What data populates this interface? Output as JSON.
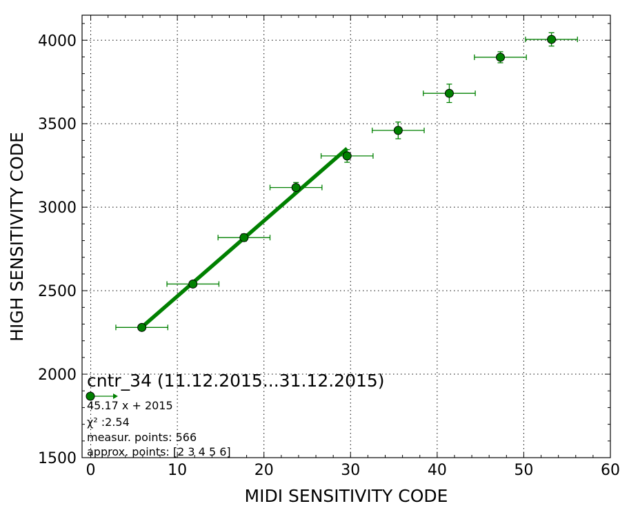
{
  "chart_data": {
    "type": "scatter",
    "title": "",
    "xlabel": "MIDI SENSITIVITY CODE",
    "ylabel": "HIGH SENSITIVITY CODE",
    "xlim": [
      -1,
      60
    ],
    "ylim": [
      1500,
      4150
    ],
    "x_ticks": [
      0,
      10,
      20,
      30,
      40,
      50,
      60
    ],
    "y_ticks": [
      1500,
      2000,
      2500,
      3000,
      3500,
      4000
    ],
    "grid": true,
    "colors": {
      "series": "#008000",
      "marker_edge": "#000000"
    },
    "series": [
      {
        "x": [
          5.9,
          11.8,
          17.7,
          23.7,
          29.6,
          35.5,
          41.4,
          47.3,
          53.2
        ],
        "y": [
          2280,
          2540,
          2818,
          3118,
          3307,
          3460,
          3682,
          3898,
          4005
        ],
        "x_err": [
          3.0,
          3.0,
          3.0,
          3.0,
          3.0,
          3.0,
          3.0,
          3.0,
          3.0
        ],
        "y_err": [
          15,
          15,
          22,
          30,
          38,
          50,
          55,
          33,
          40
        ]
      }
    ],
    "fit": {
      "slope": 45.17,
      "intercept": 2015,
      "x_range": [
        5.9,
        29.6
      ]
    },
    "legend": {
      "placement": "lower-left",
      "title": "cntr_34 (11.12.2015...31.12.2015)",
      "lines": [
        "45.17 x + 2015",
        "χ² :2.54",
        "measur. points: 566",
        "approx. points: [2 3 4 5 6]"
      ]
    }
  }
}
